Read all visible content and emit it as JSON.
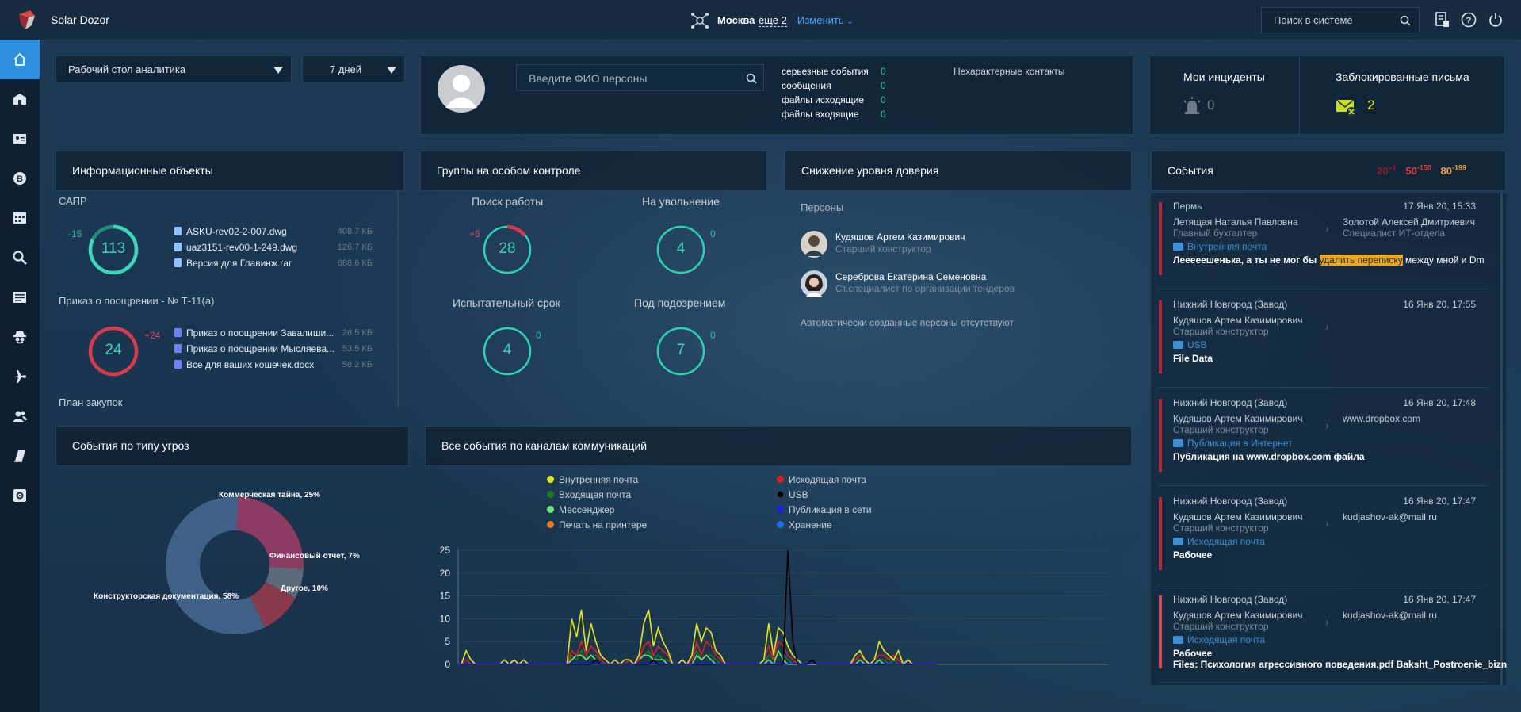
{
  "app": {
    "title": "Solar Dozor"
  },
  "topbar": {
    "city": "Москва",
    "more": "еще 2",
    "change": "Изменить",
    "search_placeholder": "Поиск в системе"
  },
  "sidebar": {
    "items": [
      "home",
      "office",
      "person-card",
      "bitcoin",
      "calendar",
      "search",
      "news",
      "spy",
      "plane",
      "people",
      "book",
      "settings"
    ]
  },
  "dashboard_select": {
    "value": "Рабочий стол аналитика"
  },
  "period_select": {
    "value": "7 дней"
  },
  "person_search": {
    "placeholder": "Введите ФИО персоны",
    "stats": [
      {
        "label": "серьезные события",
        "value": "0"
      },
      {
        "label": "сообщения",
        "value": "0"
      },
      {
        "label": "файлы исходящие",
        "value": "0"
      },
      {
        "label": "файлы входящие",
        "value": "0"
      }
    ],
    "atypical": "Нехарактерные контакты"
  },
  "incidents": {
    "my_title": "Мои инциденты",
    "my_value": "0",
    "blocked_title": "Заблокированные письма",
    "blocked_value": "2"
  },
  "info_objects": {
    "title": "Информационные объекты",
    "groups": [
      {
        "name": "САПР",
        "value": "113",
        "delta": "-15",
        "files": [
          {
            "name": "ASKU-rev02-2-007.dwg",
            "size": "408.7 КБ"
          },
          {
            "name": "uaz3151-rev00-1-249.dwg",
            "size": "126.7 КБ"
          },
          {
            "name": "Версия для Главинж.rar",
            "size": "688.6 КБ"
          }
        ]
      },
      {
        "name": "Приказ о поощрении - № Т-11(а)",
        "value": "24",
        "delta": "+24",
        "files": [
          {
            "name": "Приказ о поощрении Завалиши...",
            "size": "26.5 КБ"
          },
          {
            "name": "Приказ о поощрении Мысляева...",
            "size": "53.5 КБ"
          },
          {
            "name": "Все для ваших кошечек.docx",
            "size": "58.2 КБ"
          }
        ]
      }
    ],
    "next_group": "План закупок"
  },
  "groups_control": {
    "title": "Группы на особом контроле",
    "items": [
      {
        "name": "Поиск работы",
        "value": "28",
        "delta": "+5"
      },
      {
        "name": "На увольнение",
        "value": "4",
        "delta": "0"
      },
      {
        "name": "Испытательный срок",
        "value": "4",
        "delta": "0"
      },
      {
        "name": "Под подозрением",
        "value": "7",
        "delta": "0"
      }
    ]
  },
  "trust_decrease": {
    "title": "Снижение уровня доверия",
    "subtitle": "Персоны",
    "persons": [
      {
        "name": "Кудяшов Артем Казимирович",
        "role": "Старший конструктор"
      },
      {
        "name": "Сереброва Екатерина Семеновна",
        "role": "Ст.специалист по организации тендеров"
      }
    ],
    "auto_note": "Автоматически созданные персоны отсутствуют"
  },
  "events": {
    "title": "События",
    "badges": [
      {
        "value": "20",
        "sup": "+1",
        "color": "#8a1d24"
      },
      {
        "value": "50",
        "sup": "-150",
        "color": "#e63b3b"
      },
      {
        "value": "80",
        "sup": "-199",
        "color": "#f0a030"
      }
    ],
    "items": [
      {
        "city": "Пермь",
        "date": "17 Янв 20, 15:33",
        "from": "Летящая Наталья Павловна",
        "from_role": "Главный бухгалтер",
        "to": "Золотой Алексей Дмитриевич",
        "to_role": "Специалист ИТ-отдела",
        "channel": "Внутренняя почта",
        "text_before": "Лееееешенька, а ты не мог бы ",
        "text_highlight": "удалить переписку",
        "text_after": " между мной и Dm",
        "text2": ""
      },
      {
        "city": "Нижний Новгород (Завод)",
        "date": "16 Янв 20, 17:55",
        "from": "Кудяшов Артем Казимирович",
        "from_role": "Старший конструктор",
        "to": "",
        "to_role": "",
        "channel": "USB",
        "text_before": "File Data",
        "text_highlight": "",
        "text_after": "",
        "text2": ""
      },
      {
        "city": "Нижний Новгород (Завод)",
        "date": "16 Янв 20, 17:48",
        "from": "Кудяшов Артем Казимирович",
        "from_role": "Старший конструктор",
        "to": "www.dropbox.com",
        "to_role": "",
        "channel": "Публикация в Интернет",
        "text_before": "Публикация на www.dropbox.com файла",
        "text_highlight": "",
        "text_after": "",
        "text2": ""
      },
      {
        "city": "Нижний Новгород (Завод)",
        "date": "16 Янв 20, 17:47",
        "from": "Кудяшов Артем Казимирович",
        "from_role": "Старший конструктор",
        "to": "kudjashov-ak@mail.ru",
        "to_role": "",
        "channel": "Исходящая почта",
        "text_before": "Рабочее",
        "text_highlight": "",
        "text_after": "",
        "text2": ""
      },
      {
        "city": "Нижний Новгород (Завод)",
        "date": "16 Янв 20, 17:47",
        "from": "Кудяшов Артем Казимирович",
        "from_role": "Старший конструктор",
        "to": "kudjashov-ak@mail.ru",
        "to_role": "",
        "channel": "Исходящая почта",
        "text_before": "Рабочее",
        "text_highlight": "",
        "text_after": "",
        "text2": "Files: Психология агрессивного поведения.pdf Baksht_Postroenie_bizn"
      }
    ]
  },
  "threat_events": {
    "title": "События по типу угроз",
    "chart_data": {
      "type": "pie",
      "donut": true,
      "slices": [
        {
          "label": "Коммерческая тайна, 25%",
          "value": 25,
          "color": "#8e3b63"
        },
        {
          "label": "Финансовый отчет, 7%",
          "value": 7,
          "color": "#5b6a78"
        },
        {
          "label": "Другое, 10%",
          "value": 10,
          "color": "#8a3a4a"
        },
        {
          "label": "Конструкторская документация, 58%",
          "value": 58,
          "color": "#3f6187"
        }
      ]
    }
  },
  "channel_events": {
    "title": "Все события по каналам коммуникаций",
    "legend": [
      {
        "name": "Внутренняя почта",
        "color": "#e6e61e"
      },
      {
        "name": "Исходящая почта",
        "color": "#e01e1e"
      },
      {
        "name": "Входящая почта",
        "color": "#1e7a1e"
      },
      {
        "name": "USB",
        "color": "#000000"
      },
      {
        "name": "Мессенджер",
        "color": "#6ee66e"
      },
      {
        "name": "Публикация в сети",
        "color": "#1e1ee6"
      },
      {
        "name": "Печать на принтере",
        "color": "#f07a1e"
      },
      {
        "name": "Хранение",
        "color": "#1e6ef0"
      }
    ],
    "chart_data": {
      "type": "line",
      "ylim": [
        0,
        25
      ],
      "yticks": [
        "25",
        "20",
        "15",
        "10",
        "5",
        "0"
      ],
      "x": [
        0,
        1,
        2,
        3,
        4,
        5,
        6,
        7,
        8,
        9,
        10,
        11,
        12,
        13,
        14,
        15,
        16,
        17,
        18,
        19,
        20,
        21,
        22,
        23,
        24,
        25,
        26,
        27,
        28,
        29,
        30,
        31,
        32,
        33,
        34,
        35,
        36,
        37,
        38,
        39,
        40,
        41,
        42,
        43,
        44,
        45,
        46,
        47,
        48,
        49,
        50,
        51,
        52,
        53,
        54,
        55,
        56,
        57,
        58,
        59,
        60,
        61,
        62,
        63,
        64,
        65,
        66,
        67,
        68,
        69,
        70,
        71,
        72,
        73,
        74,
        75,
        76,
        77,
        78,
        79,
        80,
        81,
        82,
        83,
        84,
        85,
        86,
        87,
        88,
        89,
        90,
        91,
        92,
        93,
        94,
        95,
        96,
        97,
        98,
        99
      ],
      "series": [
        {
          "name": "Внутренняя почта",
          "color": "#e6e61e",
          "values": [
            0,
            3,
            1,
            0,
            0,
            0,
            0,
            0,
            0,
            1,
            0,
            1,
            0,
            1,
            0,
            0,
            0,
            0,
            0,
            0,
            0,
            0,
            0,
            10,
            6,
            12,
            3,
            9,
            5,
            2,
            1,
            0,
            1,
            0,
            1,
            1,
            0,
            2,
            9,
            12,
            4,
            8,
            5,
            3,
            0,
            0,
            1,
            0,
            2,
            9,
            5,
            8,
            7,
            3,
            2,
            0,
            0,
            0,
            0,
            0,
            0,
            0,
            0,
            1,
            9,
            2,
            8,
            7,
            4,
            2,
            1,
            0,
            0,
            0,
            0,
            0,
            0,
            0,
            0,
            0,
            0,
            0,
            2,
            3,
            1,
            0,
            1,
            5,
            3,
            2,
            1,
            3,
            0,
            1,
            0,
            0,
            0,
            0,
            0,
            0
          ]
        },
        {
          "name": "Исходящая почта",
          "color": "#e01e1e",
          "values": [
            0,
            1,
            0,
            0,
            0,
            0,
            0,
            0,
            0,
            0,
            0,
            1,
            0,
            0,
            0,
            0,
            0,
            0,
            0,
            0,
            0,
            0,
            0,
            3,
            2,
            5,
            2,
            4,
            3,
            1,
            0,
            0,
            0,
            0,
            0,
            1,
            0,
            1,
            4,
            5,
            2,
            4,
            3,
            2,
            0,
            0,
            0,
            0,
            1,
            5,
            2,
            5,
            4,
            2,
            1,
            0,
            0,
            0,
            0,
            0,
            0,
            0,
            0,
            1,
            4,
            1,
            5,
            4,
            2,
            1,
            0,
            0,
            0,
            0,
            0,
            0,
            0,
            0,
            0,
            0,
            0,
            0,
            1,
            2,
            1,
            0,
            1,
            2,
            2,
            1,
            2,
            1,
            0,
            0,
            0,
            0,
            0,
            0,
            0,
            0
          ]
        },
        {
          "name": "Входящая почта",
          "color": "#1e7a1e",
          "values": [
            0,
            0,
            0,
            0,
            0,
            0,
            0,
            0,
            0,
            0,
            0,
            0,
            0,
            0,
            0,
            0,
            0,
            0,
            0,
            0,
            0,
            0,
            0,
            2,
            1,
            3,
            1,
            2,
            2,
            1,
            0,
            0,
            0,
            0,
            0,
            0,
            0,
            1,
            2,
            3,
            1,
            2,
            1,
            1,
            0,
            0,
            0,
            0,
            1,
            3,
            1,
            2,
            2,
            1,
            0,
            0,
            0,
            0,
            0,
            0,
            0,
            0,
            0,
            0,
            2,
            1,
            2,
            2,
            1,
            0,
            0,
            0,
            0,
            0,
            0,
            0,
            0,
            0,
            0,
            0,
            0,
            0,
            1,
            1,
            0,
            0,
            0,
            1,
            1,
            0,
            1,
            0,
            0,
            0,
            0,
            0,
            0,
            0,
            0,
            0
          ]
        },
        {
          "name": "USB",
          "color": "#000000",
          "values": [
            0,
            0,
            0,
            0,
            0,
            0,
            0,
            0,
            0,
            0,
            0,
            0,
            0,
            0,
            0,
            0,
            0,
            0,
            0,
            0,
            0,
            0,
            0,
            0,
            0,
            0,
            0,
            0,
            1,
            0,
            0,
            0,
            0,
            0,
            0,
            0,
            0,
            0,
            0,
            0,
            1,
            0,
            0,
            0,
            0,
            0,
            0,
            0,
            0,
            0,
            0,
            0,
            0,
            0,
            0,
            0,
            0,
            0,
            0,
            0,
            0,
            0,
            0,
            0,
            0,
            0,
            0,
            0,
            25,
            5,
            0,
            0,
            0,
            1,
            0,
            0,
            0,
            0,
            0,
            0,
            0,
            0,
            0,
            0,
            0,
            0,
            0,
            0,
            0,
            0,
            0,
            0,
            0,
            0,
            0,
            0,
            0,
            0,
            0,
            0
          ]
        },
        {
          "name": "Мессенджер",
          "color": "#6ee66e",
          "values": [
            0,
            0,
            0,
            0,
            0,
            0,
            0,
            0,
            0,
            0,
            0,
            0,
            0,
            0,
            0,
            0,
            0,
            0,
            0,
            0,
            0,
            0,
            0,
            1,
            2,
            2,
            1,
            2,
            1,
            0,
            0,
            0,
            0,
            0,
            0,
            0,
            0,
            1,
            2,
            2,
            1,
            1,
            1,
            0,
            0,
            0,
            0,
            0,
            0,
            2,
            1,
            2,
            1,
            0,
            0,
            0,
            0,
            0,
            0,
            0,
            0,
            0,
            0,
            0,
            1,
            0,
            3,
            1,
            0,
            0,
            0,
            0,
            0,
            0,
            0,
            0,
            0,
            0,
            0,
            0,
            0,
            0,
            0,
            1,
            0,
            0,
            0,
            1,
            0,
            0,
            0,
            0,
            0,
            0,
            0,
            0,
            0,
            0,
            0,
            0
          ]
        }
      ]
    }
  }
}
